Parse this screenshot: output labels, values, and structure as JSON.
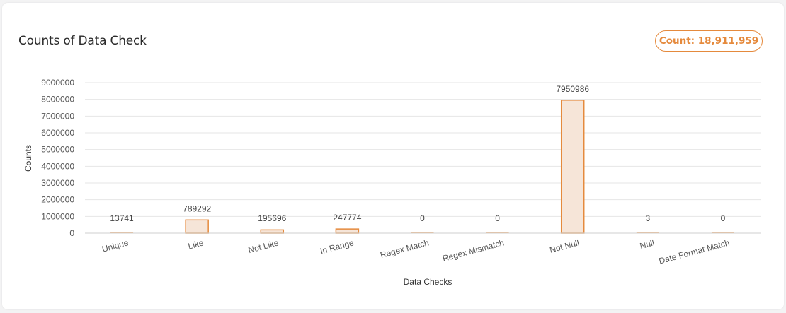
{
  "header": {
    "title": "Counts of Data Check",
    "count_label": "Count: 18,911,959"
  },
  "colors": {
    "accent": "#e58a3d",
    "bar_fill": "#f6e5d8",
    "gridline": "#e6e6e6"
  },
  "chart_data": {
    "type": "bar",
    "categories": [
      "Unique",
      "Like",
      "Not Like",
      "In Range",
      "Regex Match",
      "Regex Mismatch",
      "Not Null",
      "Null",
      "Date Format Match"
    ],
    "values": [
      13741,
      789292,
      195696,
      247774,
      0,
      0,
      7950986,
      3,
      0
    ],
    "xlabel": "Data Checks",
    "ylabel": "Counts",
    "ylim": [
      0,
      9000000
    ],
    "yticks": [
      0,
      1000000,
      2000000,
      3000000,
      4000000,
      5000000,
      6000000,
      7000000,
      8000000,
      9000000
    ],
    "grid": true,
    "legend": "none"
  }
}
